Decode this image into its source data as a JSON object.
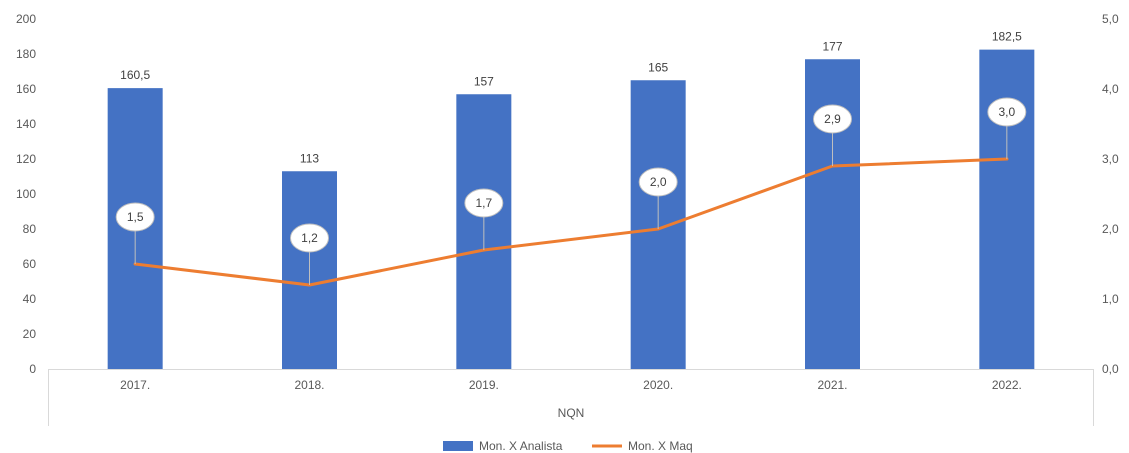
{
  "chart_data": {
    "type": "bar+line",
    "categories": [
      "2017.",
      "2018.",
      "2019.",
      "2020.",
      "2021.",
      "2022."
    ],
    "group_label": "NQN",
    "series": [
      {
        "name": "Mon. X Analista",
        "type": "bar",
        "axis": "left",
        "color": "#4472C4",
        "values": [
          160.5,
          113,
          157,
          165,
          177,
          182.5
        ],
        "labels": [
          "160,5",
          "113",
          "157",
          "165",
          "177",
          "182,5"
        ]
      },
      {
        "name": "Mon. X Maq",
        "type": "line",
        "axis": "right",
        "color": "#ED7D31",
        "values": [
          1.5,
          1.2,
          1.7,
          2.0,
          2.9,
          3.0
        ],
        "labels": [
          "1,5",
          "1,2",
          "1,7",
          "2,0",
          "2,9",
          "3,0"
        ]
      }
    ],
    "y_left": {
      "min": 0,
      "max": 200,
      "ticks": [
        0,
        20,
        40,
        60,
        80,
        100,
        120,
        140,
        160,
        180,
        200
      ],
      "tick_labels": [
        "0",
        "20",
        "40",
        "60",
        "80",
        "100",
        "120",
        "140",
        "160",
        "180",
        "200"
      ]
    },
    "y_right": {
      "min": 0,
      "max": 5,
      "ticks": [
        0,
        1,
        2,
        3,
        4,
        5
      ],
      "tick_labels": [
        "0,0",
        "1,0",
        "2,0",
        "3,0",
        "4,0",
        "5,0"
      ]
    },
    "grid": false,
    "legend_position": "bottom"
  }
}
